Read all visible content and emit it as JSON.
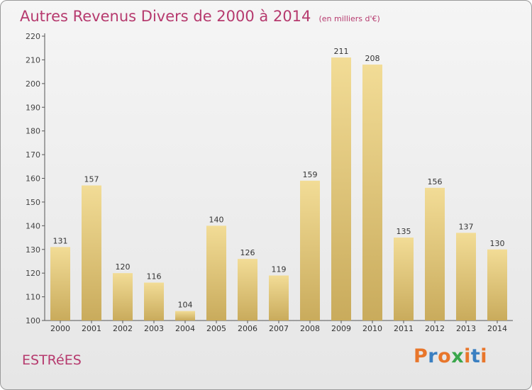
{
  "header": {
    "title": "Autres Revenus Divers de 2000 à 2014",
    "subtitle": "(en milliers d'€)"
  },
  "footer": {
    "commune": "ESTRéES",
    "logo_text": "Proxiti"
  },
  "colors": {
    "title": "#b63a6e",
    "bar_top": "#f2dc96",
    "bar_bottom": "#c9ab5c",
    "logo_letters": [
      "#e8762b",
      "#3a7fc1",
      "#e8762b",
      "#3aa64b",
      "#e8762b",
      "#3a7fc1",
      "#e8762b"
    ]
  },
  "chart_data": {
    "type": "bar",
    "categories": [
      "2000",
      "2001",
      "2002",
      "2003",
      "2004",
      "2005",
      "2006",
      "2007",
      "2008",
      "2009",
      "2010",
      "2011",
      "2012",
      "2013",
      "2014"
    ],
    "values": [
      131,
      157,
      120,
      116,
      104,
      140,
      126,
      119,
      159,
      211,
      208,
      135,
      156,
      137,
      130
    ],
    "title": "Autres Revenus Divers de 2000 à 2014",
    "subtitle": "(en milliers d'€)",
    "ylim": [
      100,
      220
    ],
    "yticks": [
      100,
      110,
      120,
      130,
      140,
      150,
      160,
      170,
      180,
      190,
      200,
      210,
      220
    ],
    "grid": false,
    "data_labels": true
  }
}
